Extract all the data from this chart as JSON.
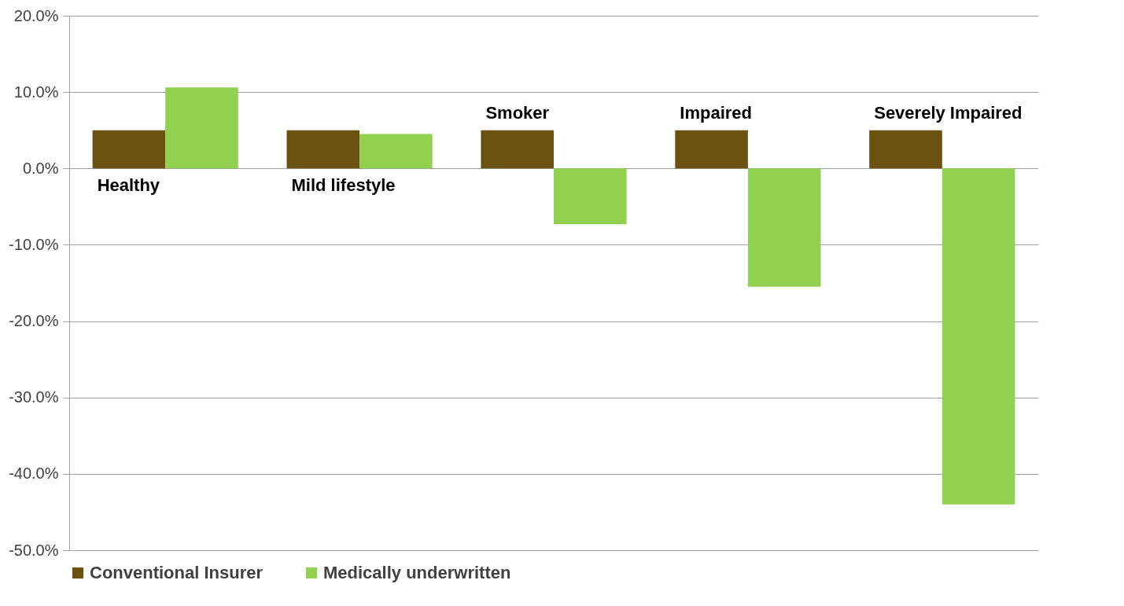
{
  "chart_data": {
    "type": "bar",
    "categories": [
      "Healthy",
      "Mild lifestyle",
      "Smoker",
      "Impaired",
      "Severely Impaired"
    ],
    "series": [
      {
        "name": "Conventional Insurer",
        "color": "#6b5210",
        "values": [
          5.0,
          5.0,
          5.0,
          5.0,
          5.0
        ]
      },
      {
        "name": "Medically underwritten",
        "color": "#92d050",
        "values": [
          10.6,
          4.5,
          -7.3,
          -15.5,
          -44.0
        ]
      }
    ],
    "ylim": [
      -50,
      20
    ],
    "yticks": [
      {
        "value": -50,
        "label": "-50.0%"
      },
      {
        "value": -40,
        "label": "-40.0%"
      },
      {
        "value": -30,
        "label": "-30.0%"
      },
      {
        "value": -20,
        "label": "-20.0%"
      },
      {
        "value": -10,
        "label": "-10.0%"
      },
      {
        "value": 0,
        "label": "0.0%"
      },
      {
        "value": 10,
        "label": "10.0%"
      },
      {
        "value": 20,
        "label": "20.0%"
      }
    ],
    "grid": "y",
    "legend": "bottom"
  }
}
